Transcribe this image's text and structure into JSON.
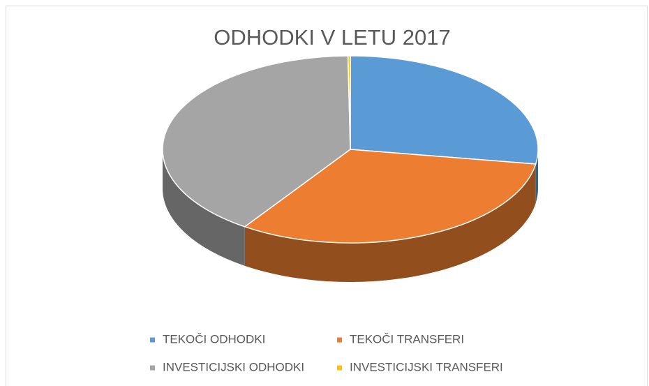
{
  "chart_data": {
    "type": "pie",
    "title": "ODHODKI V LETU 2017",
    "categories": [
      "TEKOČI ODHODKI",
      "TEKOČI TRANSFERI",
      "INVESTICIJSKI ODHODKI",
      "INVESTICIJSKI TRANSFERI"
    ],
    "values": [
      27.5,
      32.0,
      40.3,
      0.2
    ],
    "colors": [
      "#5b9bd5",
      "#ed7d31",
      "#a5a5a5",
      "#ffc000"
    ],
    "legend": "bottom"
  }
}
